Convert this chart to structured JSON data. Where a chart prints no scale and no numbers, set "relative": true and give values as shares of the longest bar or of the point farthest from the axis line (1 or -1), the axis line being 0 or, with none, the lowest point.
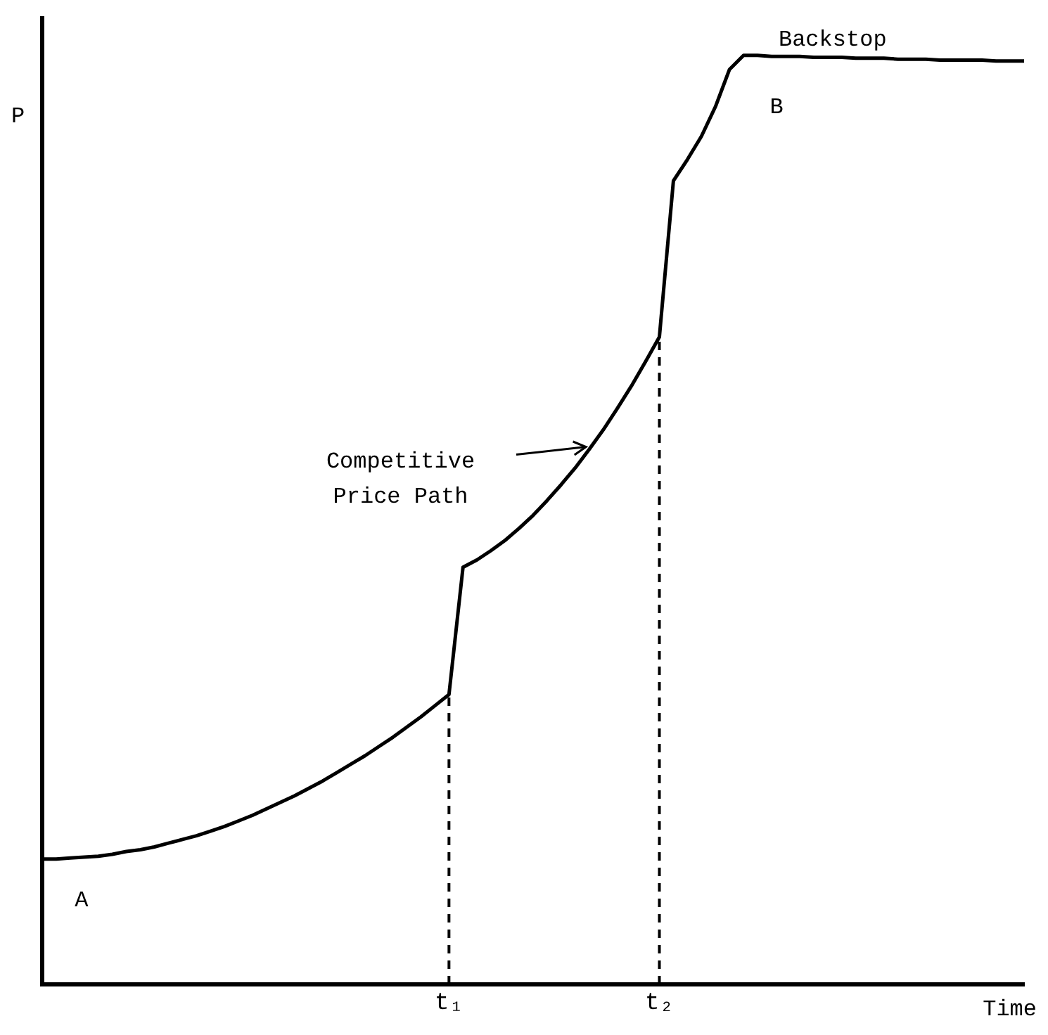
{
  "chart_data": {
    "type": "line",
    "relative": true,
    "xlabel": "Time",
    "ylabel": "P",
    "categories": [
      null,
      null,
      null,
      null,
      null,
      null,
      null,
      null,
      null,
      null,
      null,
      null,
      null,
      null,
      null,
      null,
      null,
      null,
      null,
      null,
      null,
      null,
      null,
      null,
      null,
      null,
      null,
      null,
      null,
      "t₁",
      null,
      null,
      null,
      null,
      null,
      null,
      null,
      null,
      null,
      null,
      null,
      null,
      null,
      null,
      "t₂",
      null,
      null,
      null,
      null,
      null,
      null,
      null,
      null,
      null,
      null,
      null,
      null,
      null,
      null,
      null,
      null,
      null,
      null,
      null,
      null,
      null,
      null,
      null,
      null,
      null,
      null
    ],
    "series": [
      {
        "color": "#000000",
        "values": [
          0.135,
          0.135,
          0.136,
          0.137,
          0.138,
          0.14,
          0.143,
          0.145,
          0.148,
          0.152,
          0.156,
          0.16,
          0.165,
          0.17,
          0.176,
          0.182,
          0.189,
          0.196,
          0.203,
          0.211,
          0.219,
          0.228,
          0.237,
          0.246,
          0.256,
          0.266,
          0.277,
          0.288,
          0.3,
          0.312,
          0.449,
          0.457,
          0.467,
          0.478,
          0.491,
          0.505,
          0.521,
          0.538,
          0.556,
          0.576,
          0.597,
          0.62,
          0.644,
          0.67,
          0.697,
          0.865,
          0.888,
          0.913,
          0.945,
          0.985,
          1,
          1,
          0.999,
          0.999,
          0.999,
          0.998,
          0.998,
          0.998,
          0.997,
          0.997,
          0.997,
          0.996,
          0.996,
          0.996,
          0.995,
          0.995,
          0.995,
          0.995,
          0.994,
          0.994,
          0.994
        ]
      }
    ],
    "ref_lines": [
      {
        "axis": "x",
        "value": "t₁",
        "line_style": "dashed",
        "color": "#000000"
      },
      {
        "axis": "x",
        "value": "t₂",
        "line_style": "dashed",
        "color": "#000000"
      }
    ],
    "annotations": [
      "A",
      "B",
      "Backstop",
      "Competitive Price Path"
    ],
    "grid": false,
    "legend": false,
    "marker": "none",
    "line_style": "solid"
  }
}
